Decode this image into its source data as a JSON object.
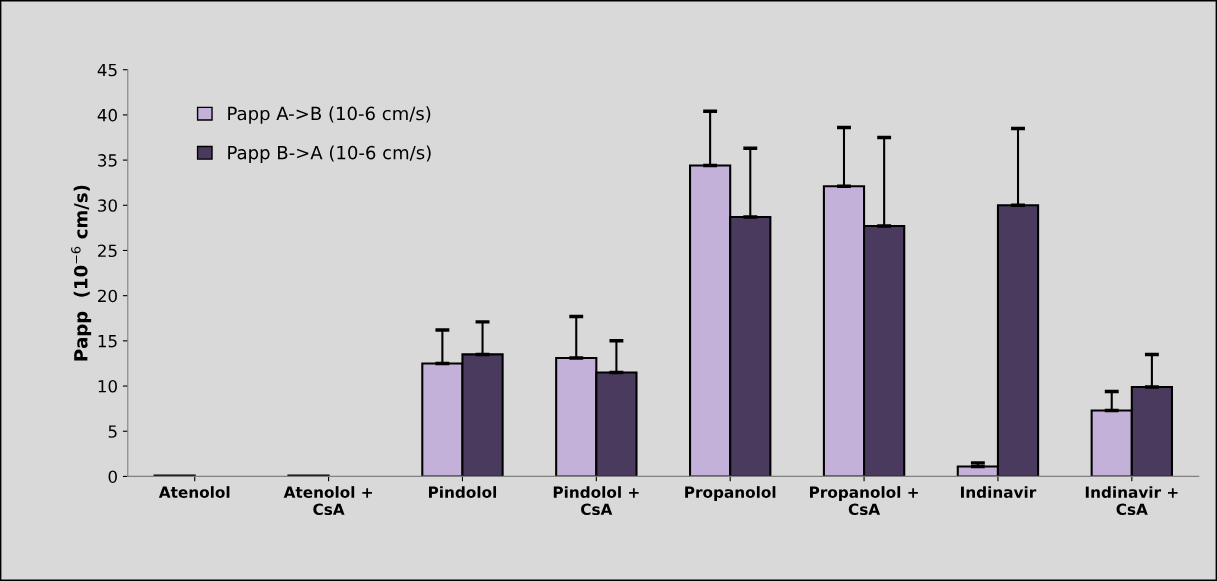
{
  "chart_data": {
    "type": "bar",
    "ylabel": "Papp  (10$^{−6}$ cm/s)",
    "categories": [
      "Atenolol",
      "Atenolol +\nCsA",
      "Pindolol",
      "Pindolol +\nCsA",
      "Propanolol",
      "Propanolol +\nCsA",
      "Indinavir",
      "Indinavir +\nCsA"
    ],
    "series": [
      {
        "name": "Papp A->B (10-6 cm/s)",
        "color": "#c3b1d9",
        "values": [
          0.1,
          0.1,
          12.5,
          13.1,
          34.4,
          32.1,
          1.1,
          7.3
        ],
        "errors": [
          null,
          null,
          [
            12.5,
            16.2
          ],
          [
            13.1,
            17.7
          ],
          [
            34.4,
            40.4
          ],
          [
            32.1,
            38.6
          ],
          [
            1.1,
            1.5
          ],
          [
            7.3,
            9.4
          ]
        ]
      },
      {
        "name": "Papp B->A (10-6 cm/s)",
        "color": "#4a3a5e",
        "values": [
          null,
          null,
          13.5,
          11.5,
          28.7,
          27.7,
          30.0,
          9.9
        ],
        "errors": [
          null,
          null,
          [
            13.5,
            17.1
          ],
          [
            11.5,
            15.0
          ],
          [
            28.7,
            36.3
          ],
          [
            27.7,
            37.5
          ],
          [
            30.0,
            38.5
          ],
          [
            9.9,
            13.5
          ]
        ]
      }
    ],
    "ylim": [
      0,
      45
    ],
    "yticks": [
      0,
      5,
      10,
      15,
      20,
      25,
      30,
      35,
      40,
      45
    ],
    "grid": false,
    "legend": "top left"
  }
}
